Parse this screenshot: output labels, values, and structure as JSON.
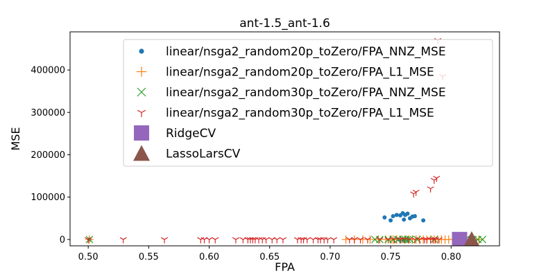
{
  "chart_data": {
    "type": "scatter",
    "title": "ant-1.5_ant-1.6",
    "xlabel": "FPA",
    "ylabel": "MSE",
    "xlim": [
      0.485,
      0.84
    ],
    "ylim": [
      -15000,
      490000
    ],
    "xticks": [
      0.5,
      0.55,
      0.6,
      0.65,
      0.7,
      0.75,
      0.8
    ],
    "xtick_labels": [
      "0.50",
      "0.55",
      "0.60",
      "0.65",
      "0.70",
      "0.75",
      "0.80"
    ],
    "yticks": [
      0,
      100000,
      200000,
      300000,
      400000
    ],
    "ytick_labels": [
      "0",
      "100000",
      "200000",
      "300000",
      "400000"
    ],
    "grid": false,
    "legend_position": "upper right",
    "series": [
      {
        "name": "linear/nsga2_random20p_toZero/FPA_NNZ_MSE",
        "marker": "dot",
        "color": "#1f77b4",
        "points": [
          [
            0.501,
            0
          ],
          [
            0.745,
            52000
          ],
          [
            0.75,
            45000
          ],
          [
            0.752,
            55000
          ],
          [
            0.755,
            58000
          ],
          [
            0.758,
            57000
          ],
          [
            0.76,
            62000
          ],
          [
            0.761,
            47000
          ],
          [
            0.762,
            58000
          ],
          [
            0.764,
            61000
          ],
          [
            0.766,
            50000
          ],
          [
            0.768,
            54000
          ],
          [
            0.77,
            55000
          ],
          [
            0.777,
            45000
          ],
          [
            0.757,
            0
          ],
          [
            0.76,
            0
          ],
          [
            0.763,
            0
          ]
        ]
      },
      {
        "name": "linear/nsga2_random20p_toZero/FPA_L1_MSE",
        "marker": "plus",
        "color": "#ff7f0e",
        "points": [
          [
            0.501,
            0
          ],
          [
            0.713,
            0
          ],
          [
            0.72,
            0
          ],
          [
            0.727,
            0
          ],
          [
            0.733,
            0
          ],
          [
            0.74,
            0
          ],
          [
            0.746,
            0
          ],
          [
            0.75,
            0
          ],
          [
            0.752,
            0
          ],
          [
            0.755,
            0
          ],
          [
            0.758,
            0
          ],
          [
            0.762,
            0
          ],
          [
            0.765,
            0
          ],
          [
            0.768,
            0
          ],
          [
            0.771,
            0
          ],
          [
            0.774,
            0
          ],
          [
            0.777,
            0
          ],
          [
            0.78,
            0
          ],
          [
            0.783,
            0
          ],
          [
            0.786,
            0
          ],
          [
            0.789,
            0
          ],
          [
            0.792,
            0
          ],
          [
            0.795,
            0
          ],
          [
            0.798,
            0
          ],
          [
            0.802,
            0
          ],
          [
            0.806,
            0
          ],
          [
            0.812,
            0
          ],
          [
            0.818,
            0
          ],
          [
            0.823,
            0
          ]
        ]
      },
      {
        "name": "linear/nsga2_random30p_toZero/FPA_NNZ_MSE",
        "marker": "x",
        "color": "#2ca02c",
        "points": [
          [
            0.501,
            0
          ],
          [
            0.737,
            0
          ],
          [
            0.741,
            0
          ],
          [
            0.748,
            0
          ],
          [
            0.752,
            0
          ],
          [
            0.756,
            0
          ],
          [
            0.76,
            0
          ],
          [
            0.762,
            0
          ],
          [
            0.764,
            0
          ],
          [
            0.766,
            0
          ],
          [
            0.772,
            0
          ],
          [
            0.786,
            0
          ],
          [
            0.807,
            0
          ],
          [
            0.812,
            0
          ],
          [
            0.818,
            0
          ],
          [
            0.822,
            0
          ],
          [
            0.826,
            0
          ]
        ]
      },
      {
        "name": "linear/nsga2_random30p_toZero/FPA_L1_MSE",
        "marker": "tri",
        "color": "#d62728",
        "points": [
          [
            0.5,
            0
          ],
          [
            0.529,
            0
          ],
          [
            0.563,
            0
          ],
          [
            0.593,
            0
          ],
          [
            0.596,
            0
          ],
          [
            0.6,
            0
          ],
          [
            0.605,
            0
          ],
          [
            0.622,
            0
          ],
          [
            0.628,
            0
          ],
          [
            0.632,
            0
          ],
          [
            0.634,
            0
          ],
          [
            0.636,
            0
          ],
          [
            0.638,
            0
          ],
          [
            0.641,
            0
          ],
          [
            0.644,
            0
          ],
          [
            0.647,
            0
          ],
          [
            0.652,
            0
          ],
          [
            0.656,
            0
          ],
          [
            0.661,
            0
          ],
          [
            0.673,
            0
          ],
          [
            0.676,
            0
          ],
          [
            0.678,
            0
          ],
          [
            0.681,
            0
          ],
          [
            0.686,
            0
          ],
          [
            0.69,
            0
          ],
          [
            0.692,
            0
          ],
          [
            0.695,
            0
          ],
          [
            0.698,
            0
          ],
          [
            0.703,
            0
          ],
          [
            0.716,
            0
          ],
          [
            0.72,
            0
          ],
          [
            0.725,
            0
          ],
          [
            0.731,
            0
          ],
          [
            0.741,
            0
          ],
          [
            0.748,
            0
          ],
          [
            0.753,
            0
          ],
          [
            0.758,
            0
          ],
          [
            0.761,
            0
          ],
          [
            0.765,
            0
          ],
          [
            0.77,
            0
          ],
          [
            0.774,
            0
          ],
          [
            0.778,
            0
          ],
          [
            0.78,
            0
          ],
          [
            0.783,
            0
          ],
          [
            0.785,
            0
          ],
          [
            0.787,
            0
          ],
          [
            0.79,
            0
          ],
          [
            0.769,
            108000
          ],
          [
            0.771,
            112000
          ],
          [
            0.783,
            120000
          ],
          [
            0.786,
            140000
          ],
          [
            0.788,
            145000
          ],
          [
            0.789,
            470000
          ],
          [
            0.793,
            385000
          ]
        ]
      },
      {
        "name": "RidgeCV",
        "marker": "square",
        "color": "#9467bd",
        "points": [
          [
            0.807,
            0
          ]
        ]
      },
      {
        "name": "LassoLarsCV",
        "marker": "triangle",
        "color": "#8c564b",
        "points": [
          [
            0.817,
            0
          ]
        ]
      }
    ]
  }
}
